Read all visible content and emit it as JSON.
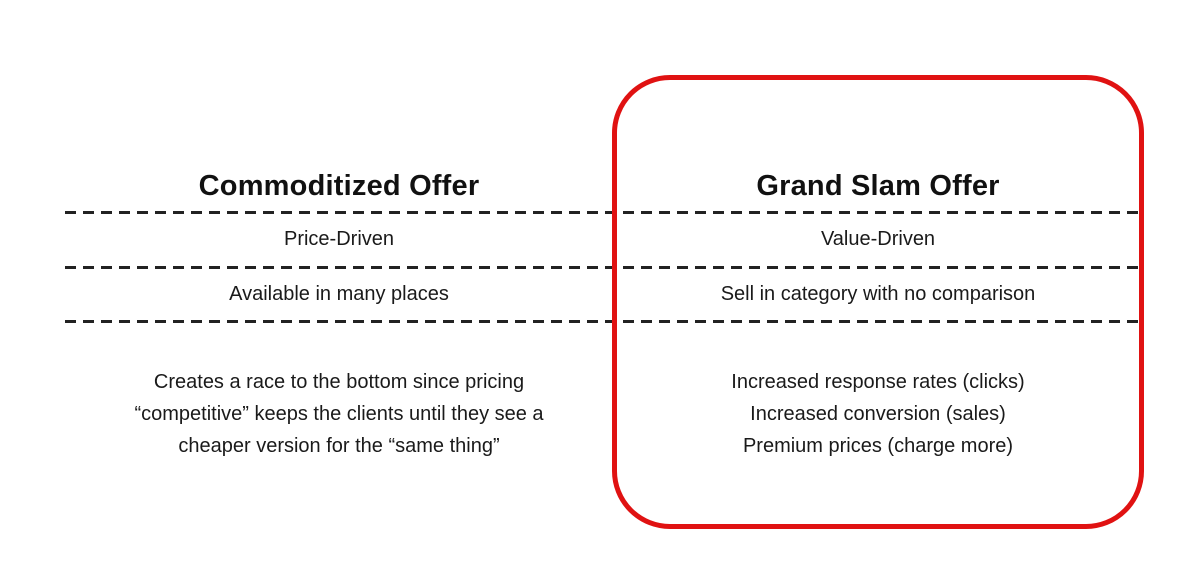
{
  "colors": {
    "background": "#ffffff",
    "accent_red": "#e01212",
    "divider": "#222222",
    "text": "#1a1a1a"
  },
  "comparison": {
    "left": {
      "header": "Commoditized Offer",
      "rows": [
        "Price-Driven",
        "Available in many places"
      ],
      "summary_lines": [
        "Creates a race to the bottom since pricing",
        "“competitive” keeps the clients until they see a",
        "cheaper version for the “same thing”"
      ]
    },
    "right": {
      "header": "Grand Slam Offer",
      "rows": [
        "Value-Driven",
        "Sell in category with no comparison"
      ],
      "summary_lines": [
        "Increased response rates (clicks)",
        "Increased conversion (sales)",
        "Premium prices (charge more)"
      ]
    }
  }
}
